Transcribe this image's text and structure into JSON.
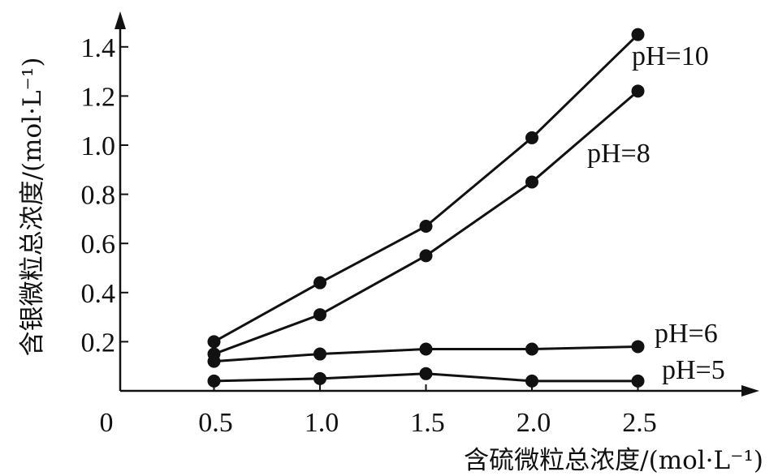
{
  "chart_data": {
    "type": "line",
    "title": "",
    "xlabel": "含硫微粒总浓度/(mol·L⁻¹)",
    "ylabel": "含银微粒总浓度/(mol·L⁻¹)",
    "xlim": [
      0,
      2.9
    ],
    "ylim": [
      0,
      1.5
    ],
    "origin_label": "0",
    "x_ticks": [
      0.5,
      1.0,
      1.5,
      2.0,
      2.5
    ],
    "x_tick_labels": [
      "0.5",
      "1.0",
      "1.5",
      "2.0",
      "2.5"
    ],
    "y_ticks": [
      0.2,
      0.4,
      0.6,
      0.8,
      1.0,
      1.2,
      1.4
    ],
    "y_tick_labels": [
      "0.2",
      "0.4",
      "0.6",
      "0.8",
      "1.0",
      "1.2",
      "1.4"
    ],
    "grid": false,
    "series": [
      {
        "name": "pH=10",
        "x": [
          0.5,
          1.0,
          1.5,
          2.0,
          2.5
        ],
        "y": [
          0.2,
          0.44,
          0.67,
          1.03,
          1.45
        ]
      },
      {
        "name": "pH=8",
        "x": [
          0.5,
          1.0,
          1.5,
          2.0,
          2.5
        ],
        "y": [
          0.15,
          0.31,
          0.55,
          0.85,
          1.22
        ]
      },
      {
        "name": "pH=6",
        "x": [
          0.5,
          1.0,
          1.5,
          2.0,
          2.5
        ],
        "y": [
          0.12,
          0.15,
          0.17,
          0.17,
          0.18
        ]
      },
      {
        "name": "pH=5",
        "x": [
          0.5,
          1.0,
          1.5,
          2.0,
          2.5
        ],
        "y": [
          0.04,
          0.05,
          0.07,
          0.04,
          0.04
        ]
      }
    ],
    "line_color": "#111111"
  }
}
